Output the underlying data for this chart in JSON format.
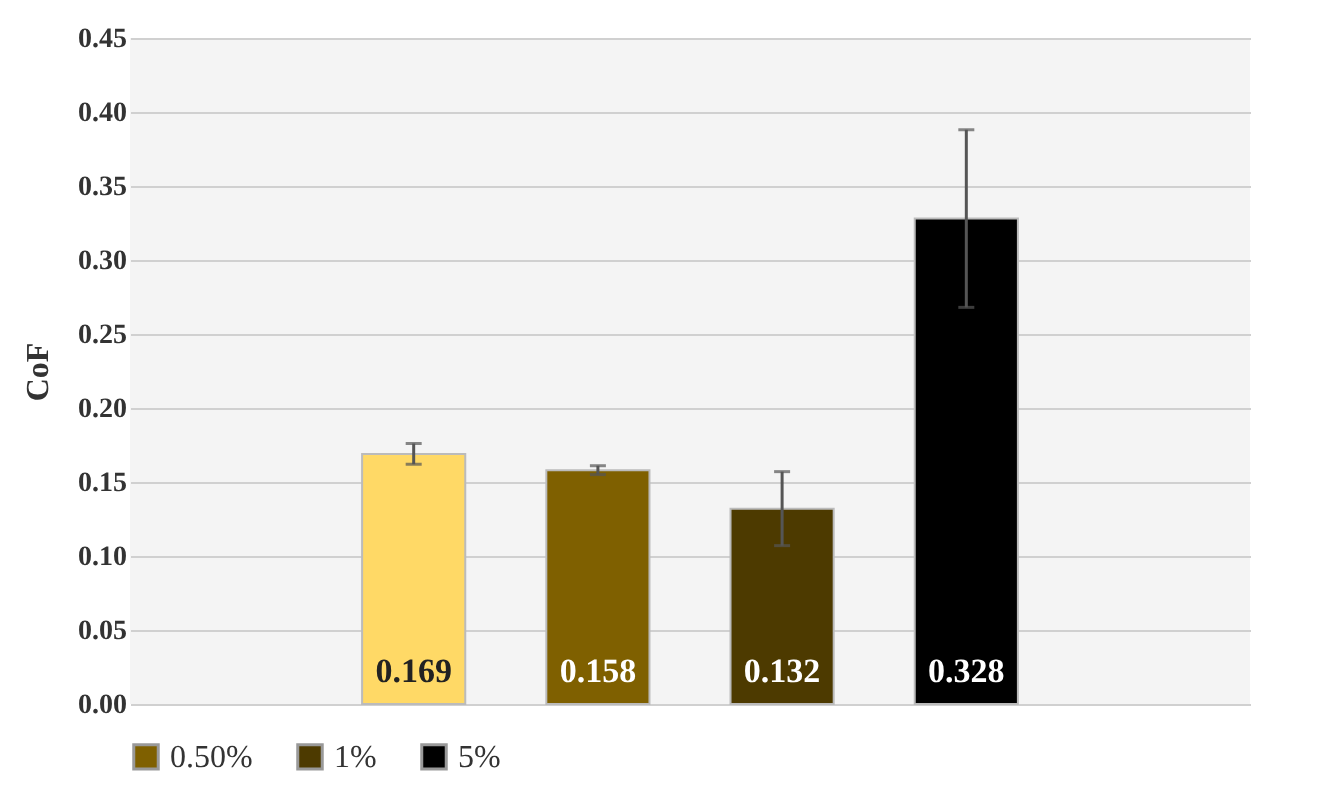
{
  "chart_data": {
    "type": "bar",
    "ylabel": "CoF",
    "categories": [
      null
    ],
    "series": [
      {
        "color": "#ffd966",
        "values": [
          0.169
        ],
        "errors": [
          0.007
        ]
      },
      {
        "name": "0.50%",
        "color": "#7f6000",
        "values": [
          0.158
        ],
        "errors": [
          0.003
        ]
      },
      {
        "name": "1%",
        "color": "#4d3a00",
        "values": [
          0.132
        ],
        "errors": [
          0.025
        ]
      },
      {
        "name": "5%",
        "color": "#000000",
        "values": [
          0.328
        ],
        "errors": [
          0.06
        ]
      }
    ],
    "ylim": [
      0,
      0.45
    ],
    "yticks": [
      {
        "value": 0,
        "label": "0.00"
      },
      {
        "value": 0.05,
        "label": "0.05"
      },
      {
        "value": 0.1,
        "label": "0.10"
      },
      {
        "value": 0.15,
        "label": "0.15"
      },
      {
        "value": 0.2,
        "label": "0.20"
      },
      {
        "value": 0.25,
        "label": "0.25"
      },
      {
        "value": 0.3,
        "label": "0.30"
      },
      {
        "value": 0.35,
        "label": "0.35"
      },
      {
        "value": 0.4,
        "label": "0.40"
      },
      {
        "value": 0.45,
        "label": "0.45"
      }
    ],
    "grid": "y",
    "legend": "bottom",
    "data_labels": true
  }
}
